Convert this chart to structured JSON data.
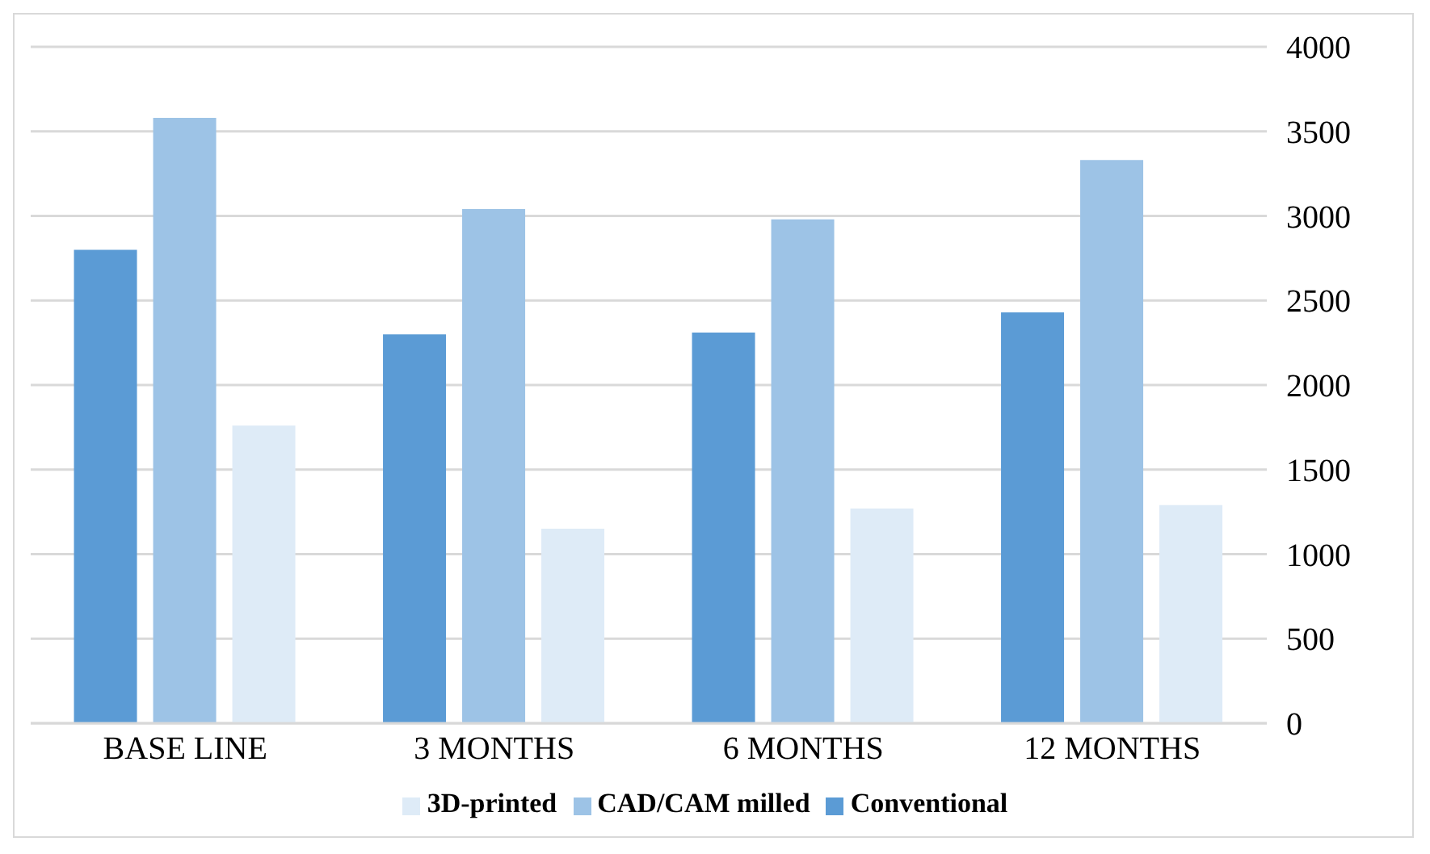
{
  "chart_data": {
    "type": "bar",
    "categories": [
      "BASE LINE",
      "3 MONTHS",
      "6 MONTHS",
      "12 MONTHS"
    ],
    "series": [
      {
        "name": "Conventional",
        "color": "#5b9bd5",
        "values": [
          2800,
          2300,
          2310,
          2430
        ]
      },
      {
        "name": "CAD/CAM milled",
        "color": "#9dc3e6",
        "values": [
          3580,
          3040,
          2980,
          3330
        ]
      },
      {
        "name": "3D-printed",
        "color": "#deebf7",
        "values": [
          1760,
          1150,
          1270,
          1290
        ]
      }
    ],
    "ylim": [
      0,
      4000
    ],
    "yticks": [
      0,
      500,
      1000,
      1500,
      2000,
      2500,
      3000,
      3500,
      4000
    ],
    "grid": "y",
    "legend": "bottom"
  }
}
